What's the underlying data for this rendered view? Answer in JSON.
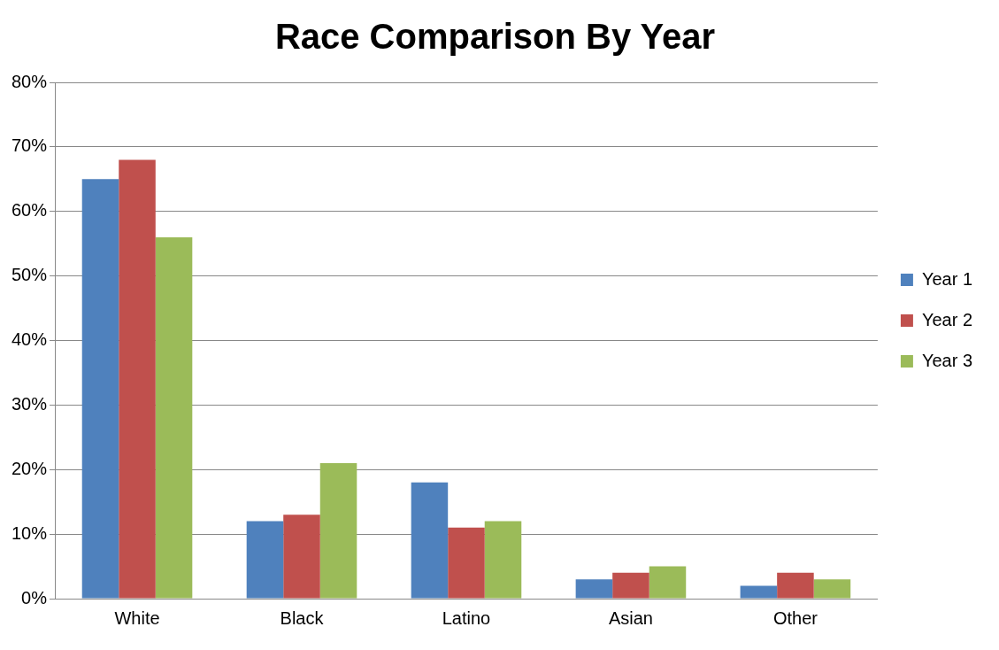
{
  "chart_data": {
    "type": "bar",
    "title": "Race Comparison By Year",
    "categories": [
      "White",
      "Black",
      "Latino",
      "Asian",
      "Other"
    ],
    "series": [
      {
        "name": "Year 1",
        "color": "#4f81bd",
        "values": [
          65,
          12,
          18,
          3,
          2
        ]
      },
      {
        "name": "Year 2",
        "color": "#c0504d",
        "values": [
          68,
          13,
          11,
          4,
          4
        ]
      },
      {
        "name": "Year 3",
        "color": "#9bbb59",
        "values": [
          56,
          21,
          12,
          5,
          3
        ]
      }
    ],
    "ylim": [
      0,
      80
    ],
    "yticks": [
      {
        "value": 0,
        "label": "0%"
      },
      {
        "value": 10,
        "label": "10%"
      },
      {
        "value": 20,
        "label": "20%"
      },
      {
        "value": 30,
        "label": "30%"
      },
      {
        "value": 40,
        "label": "40%"
      },
      {
        "value": 50,
        "label": "50%"
      },
      {
        "value": 60,
        "label": "60%"
      },
      {
        "value": 70,
        "label": "70%"
      },
      {
        "value": 80,
        "label": "80%"
      }
    ],
    "grid": "y",
    "legend": "right"
  }
}
